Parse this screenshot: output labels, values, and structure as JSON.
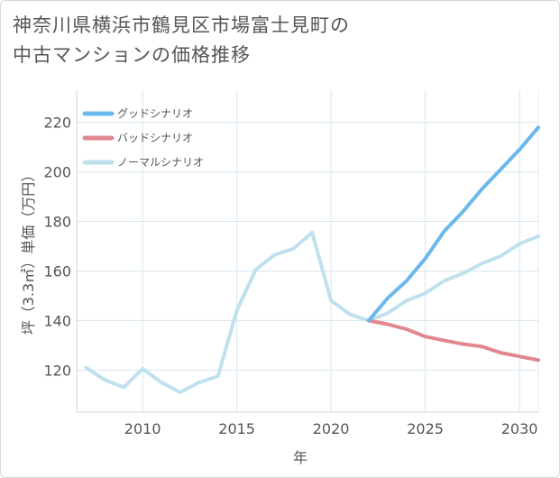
{
  "title_lines": [
    "神奈川県横浜市鶴見区市場富士見町の",
    "中古マンションの価格推移"
  ],
  "chart_data": {
    "type": "line",
    "title": "神奈川県横浜市鶴見区市場富士見町の中古マンションの価格推移",
    "xlabel": "年",
    "ylabel": "坪（3.3㎡）単価（万円）",
    "xlim": [
      2006.5,
      2031
    ],
    "ylim": [
      103,
      233
    ],
    "xticks": [
      2010,
      2015,
      2020,
      2025,
      2030
    ],
    "yticks": [
      120,
      140,
      160,
      180,
      200,
      220
    ],
    "grid": true,
    "legend_position": "top-left",
    "series": [
      {
        "name": "グッドシナリオ",
        "color": "#6bb8ea",
        "x": [
          2022,
          2023,
          2024,
          2025,
          2026,
          2027,
          2028,
          2029,
          2030,
          2031
        ],
        "values": [
          140,
          149,
          156,
          165,
          176,
          184,
          193,
          201,
          209,
          218
        ]
      },
      {
        "name": "バッドシナリオ",
        "color": "#e0878f",
        "x": [
          2022,
          2023,
          2024,
          2025,
          2026,
          2027,
          2028,
          2029,
          2030,
          2031
        ],
        "values": [
          140,
          138.5,
          136.5,
          133.5,
          132,
          130.5,
          129.5,
          127,
          125.5,
          124
        ]
      },
      {
        "name": "ノーマルシナリオ",
        "color": "#bfe1ee",
        "x": [
          2007,
          2008,
          2009,
          2010,
          2011,
          2012,
          2013,
          2014,
          2015,
          2016,
          2017,
          2018,
          2019,
          2020,
          2021,
          2022,
          2023,
          2024,
          2025,
          2026,
          2027,
          2028,
          2029,
          2030,
          2031
        ],
        "values": [
          121,
          116,
          113,
          120.5,
          115,
          111,
          115,
          117.5,
          144,
          160.5,
          166.5,
          169,
          175.5,
          148,
          142.5,
          140,
          143,
          148,
          151,
          156,
          159,
          163,
          166,
          171,
          174
        ]
      }
    ]
  }
}
